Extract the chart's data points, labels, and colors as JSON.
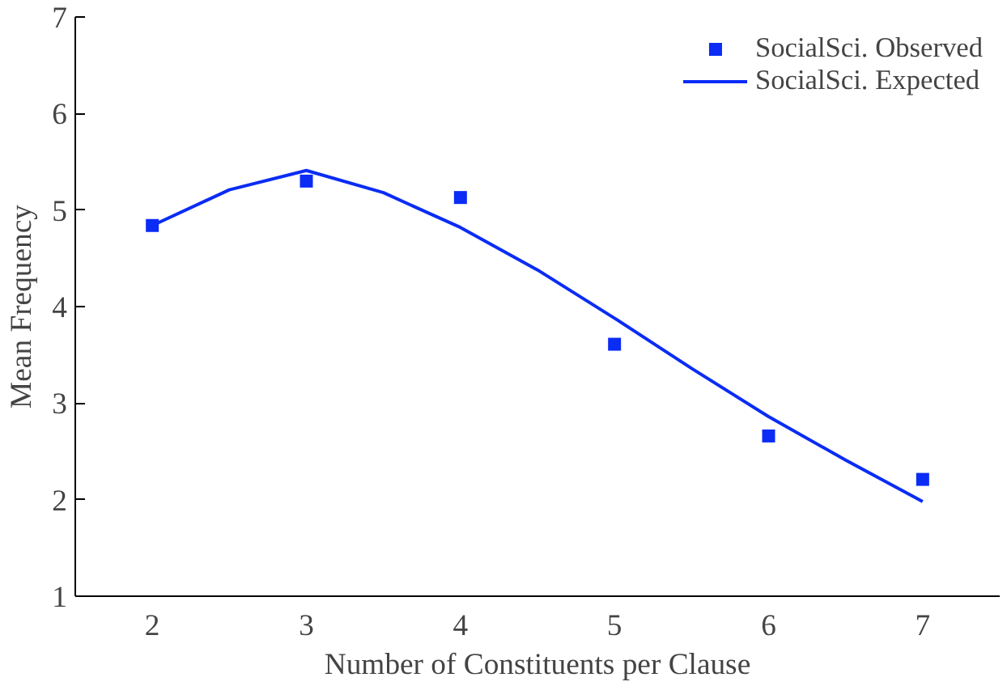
{
  "chart_data": {
    "type": "scatter",
    "xlabel": "Number of Constituents per Clause",
    "ylabel": "Mean Frequency",
    "x": [
      2,
      3,
      4,
      5,
      6,
      7
    ],
    "series": [
      {
        "name": "SocialSci. Observed",
        "type": "scatter",
        "color": "#0a2cf5",
        "marker": "square",
        "values": [
          4.84,
          5.3,
          5.13,
          3.61,
          2.66,
          2.21
        ]
      },
      {
        "name": "SocialSci. Expected",
        "type": "line",
        "color": "#0a2cf5",
        "line_style": "solid",
        "x": [
          2,
          2.5,
          3,
          3.5,
          4,
          4.5,
          5,
          5.5,
          6,
          6.5,
          7
        ],
        "values": [
          4.84,
          5.21,
          5.41,
          5.18,
          4.82,
          4.38,
          3.88,
          3.36,
          2.86,
          2.41,
          1.98
        ]
      }
    ],
    "xlim": [
      1.5,
      7.5
    ],
    "xticks": [
      2,
      3,
      4,
      5,
      6,
      7
    ],
    "ylim": [
      1,
      7
    ],
    "yticks": [
      1,
      2,
      3,
      4,
      5,
      6,
      7
    ],
    "grid": false,
    "legend": "top right"
  }
}
